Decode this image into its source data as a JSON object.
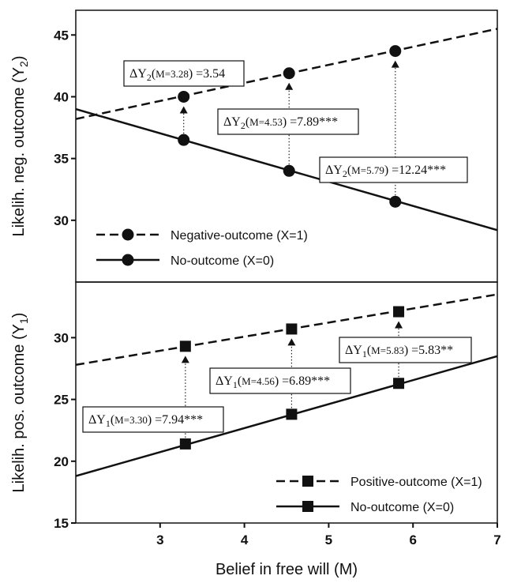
{
  "chart_data": [
    {
      "type": "line",
      "panel": "top",
      "ylabel": "Likelih. neg. outcome (Y",
      "ylabel_sub": "2",
      "ylabel_close": ")",
      "xlim": [
        2,
        7
      ],
      "ylim": [
        25,
        47
      ],
      "yticks": [
        30,
        35,
        40,
        45
      ],
      "marker": "circle",
      "series": [
        {
          "name": "Negative-outcome (X=1)",
          "style": "dashed",
          "line": [
            [
              2,
              38.2
            ],
            [
              7,
              45.5
            ]
          ],
          "points": [
            {
              "x": 3.28,
              "y": 40.0
            },
            {
              "x": 4.53,
              "y": 41.9
            },
            {
              "x": 5.79,
              "y": 43.7
            }
          ]
        },
        {
          "name": "No-outcome (X=0)",
          "style": "solid",
          "line": [
            [
              2,
              39.0
            ],
            [
              7,
              29.2
            ]
          ],
          "points": [
            {
              "x": 3.28,
              "y": 36.5
            },
            {
              "x": 4.53,
              "y": 34.0
            },
            {
              "x": 5.79,
              "y": 31.5
            }
          ]
        }
      ],
      "annotations": [
        {
          "var": "ΔY",
          "sub": "2",
          "m": "M=3.28",
          "rest": " =3.54",
          "at_x": 3.28
        },
        {
          "var": "ΔY",
          "sub": "2",
          "m": "M=4.53",
          "rest": " =7.89***",
          "at_x": 4.53
        },
        {
          "var": "ΔY",
          "sub": "2",
          "m": "M=5.79",
          "rest": " =12.24***",
          "at_x": 5.79
        }
      ],
      "legend_position": "bottom-left"
    },
    {
      "type": "line",
      "panel": "bottom",
      "ylabel": "Likelih. pos. outcome (Y",
      "ylabel_sub": "1",
      "ylabel_close": ")",
      "xlabel": "Belief in free will (M)",
      "xlim": [
        2,
        7
      ],
      "ylim": [
        15,
        34.5
      ],
      "xticks": [
        3,
        4,
        5,
        6,
        7
      ],
      "yticks": [
        15,
        20,
        25,
        30
      ],
      "marker": "square",
      "series": [
        {
          "name": "Positive-outcome (X=1)",
          "style": "dashed",
          "line": [
            [
              2,
              27.8
            ],
            [
              7,
              33.5
            ]
          ],
          "points": [
            {
              "x": 3.3,
              "y": 29.3
            },
            {
              "x": 4.56,
              "y": 30.7
            },
            {
              "x": 5.83,
              "y": 32.1
            }
          ]
        },
        {
          "name": "No-outcome (X=0)",
          "style": "solid",
          "line": [
            [
              2,
              18.8
            ],
            [
              7,
              28.5
            ]
          ],
          "points": [
            {
              "x": 3.3,
              "y": 21.4
            },
            {
              "x": 4.56,
              "y": 23.8
            },
            {
              "x": 5.83,
              "y": 26.3
            }
          ]
        }
      ],
      "annotations": [
        {
          "var": "ΔY",
          "sub": "1",
          "m": "M=3.30",
          "rest": " =7.94***",
          "at_x": 3.3
        },
        {
          "var": "ΔY",
          "sub": "1",
          "m": "M=4.56",
          "rest": " =6.89***",
          "at_x": 4.56
        },
        {
          "var": "ΔY",
          "sub": "1",
          "m": "M=5.83",
          "rest": " =5.83**",
          "at_x": 5.83
        }
      ],
      "legend_position": "bottom-right"
    }
  ]
}
